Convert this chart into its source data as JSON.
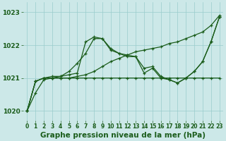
{
  "background_color": "#cce8e8",
  "grid_color": "#99cccc",
  "line_color": "#1a5c1a",
  "xlim": [
    -0.5,
    23.5
  ],
  "ylim": [
    1019.7,
    1023.3
  ],
  "yticks": [
    1020,
    1021,
    1022,
    1023
  ],
  "xticks": [
    0,
    1,
    2,
    3,
    4,
    5,
    6,
    7,
    8,
    9,
    10,
    11,
    12,
    13,
    14,
    15,
    16,
    17,
    18,
    19,
    20,
    21,
    22,
    23
  ],
  "xlabel": "Graphe pression niveau de la mer (hPa)",
  "xlabel_fontsize": 7.5,
  "ytick_fontsize": 6.5,
  "xtick_fontsize": 5.5,
  "series": [
    [
      1020.0,
      1020.55,
      1020.95,
      1021.0,
      1021.0,
      1021.0,
      1021.0,
      1021.0,
      1021.0,
      1021.0,
      1021.0,
      1021.0,
      1021.0,
      1021.0,
      1021.0,
      1021.0,
      1021.0,
      1021.0,
      1021.0,
      1021.0,
      1021.0,
      1021.0,
      1021.0,
      1021.0
    ],
    [
      1020.0,
      1020.9,
      1021.0,
      1021.0,
      1021.0,
      1021.0,
      1021.05,
      1021.1,
      1021.2,
      1021.35,
      1021.5,
      1021.6,
      1021.7,
      1021.8,
      1021.85,
      1021.9,
      1021.95,
      1022.05,
      1022.1,
      1022.2,
      1022.3,
      1022.4,
      1022.6,
      1022.9
    ],
    [
      1020.0,
      1020.9,
      1021.0,
      1021.0,
      1021.05,
      1021.2,
      1021.45,
      1021.75,
      1022.2,
      1022.2,
      1021.9,
      1021.75,
      1021.7,
      1021.65,
      1021.3,
      1021.35,
      1021.05,
      1020.95,
      1020.85,
      1021.0,
      1021.2,
      1021.5,
      1022.1,
      1022.85
    ],
    [
      1020.0,
      1020.9,
      1021.0,
      1021.05,
      1021.05,
      1021.1,
      1021.15,
      1022.1,
      1022.25,
      1022.2,
      1021.85,
      1021.75,
      1021.65,
      1021.65,
      1021.15,
      1021.3,
      1021.0,
      1020.95,
      1020.85,
      1021.0,
      1021.2,
      1021.5,
      1022.1,
      1022.85
    ]
  ]
}
